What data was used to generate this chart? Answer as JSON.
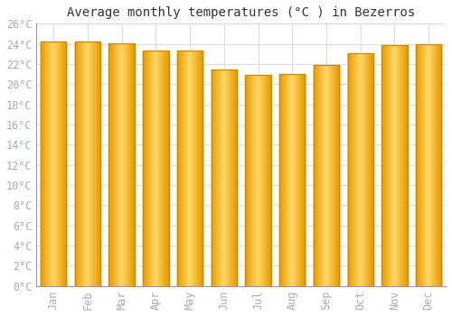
{
  "title": "Average monthly temperatures (°C ) in Bezerros",
  "months": [
    "Jan",
    "Feb",
    "Mar",
    "Apr",
    "May",
    "Jun",
    "Jul",
    "Aug",
    "Sep",
    "Oct",
    "Nov",
    "Dec"
  ],
  "values": [
    24.2,
    24.2,
    24.1,
    23.3,
    23.3,
    21.5,
    20.9,
    21.0,
    21.9,
    23.1,
    23.9,
    24.0
  ],
  "bar_color_center": "#FFD966",
  "bar_color_edge": "#E89B00",
  "bar_edge_color": "#CC8800",
  "ylim": [
    0,
    26
  ],
  "ytick_step": 2,
  "background_color": "#ffffff",
  "grid_color": "#dddddd",
  "font_family": "monospace",
  "title_fontsize": 10,
  "tick_fontsize": 8.5,
  "tick_label_color": "#aaaaaa",
  "bar_width": 0.75
}
